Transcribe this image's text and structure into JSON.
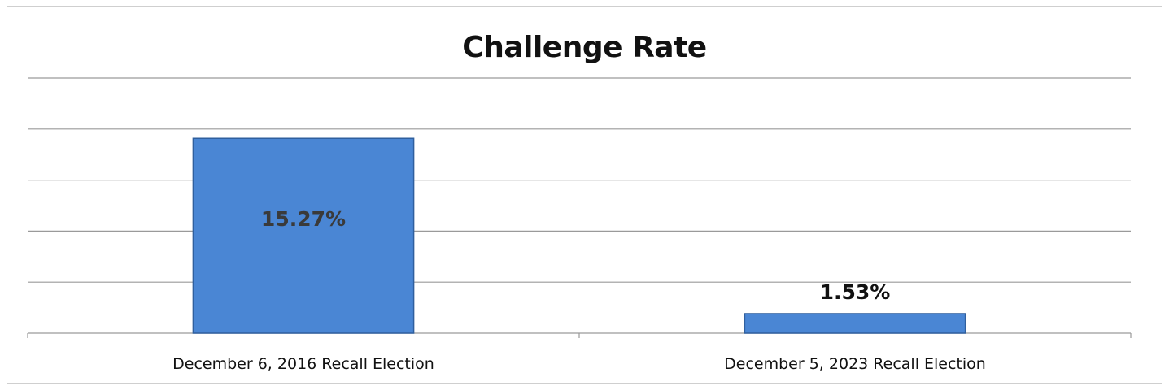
{
  "chart_data": {
    "type": "bar",
    "title": "Challenge Rate",
    "categories": [
      "December 6, 2016 Recall Election",
      "December 5, 2023 Recall Election"
    ],
    "values": [
      15.27,
      1.53
    ],
    "value_labels": [
      "15.27%",
      "1.53%"
    ],
    "xlabel": "",
    "ylabel": "",
    "ylim": [
      0,
      20
    ],
    "y_unit": "%",
    "grid": true,
    "legend": "none",
    "colors": {
      "bar_fill": "#4a86d4",
      "bar_edge": "#2f5f9e",
      "grid": "#9a9a9a",
      "label_inside": "#3a3a3a",
      "label_outside": "#111111"
    }
  }
}
